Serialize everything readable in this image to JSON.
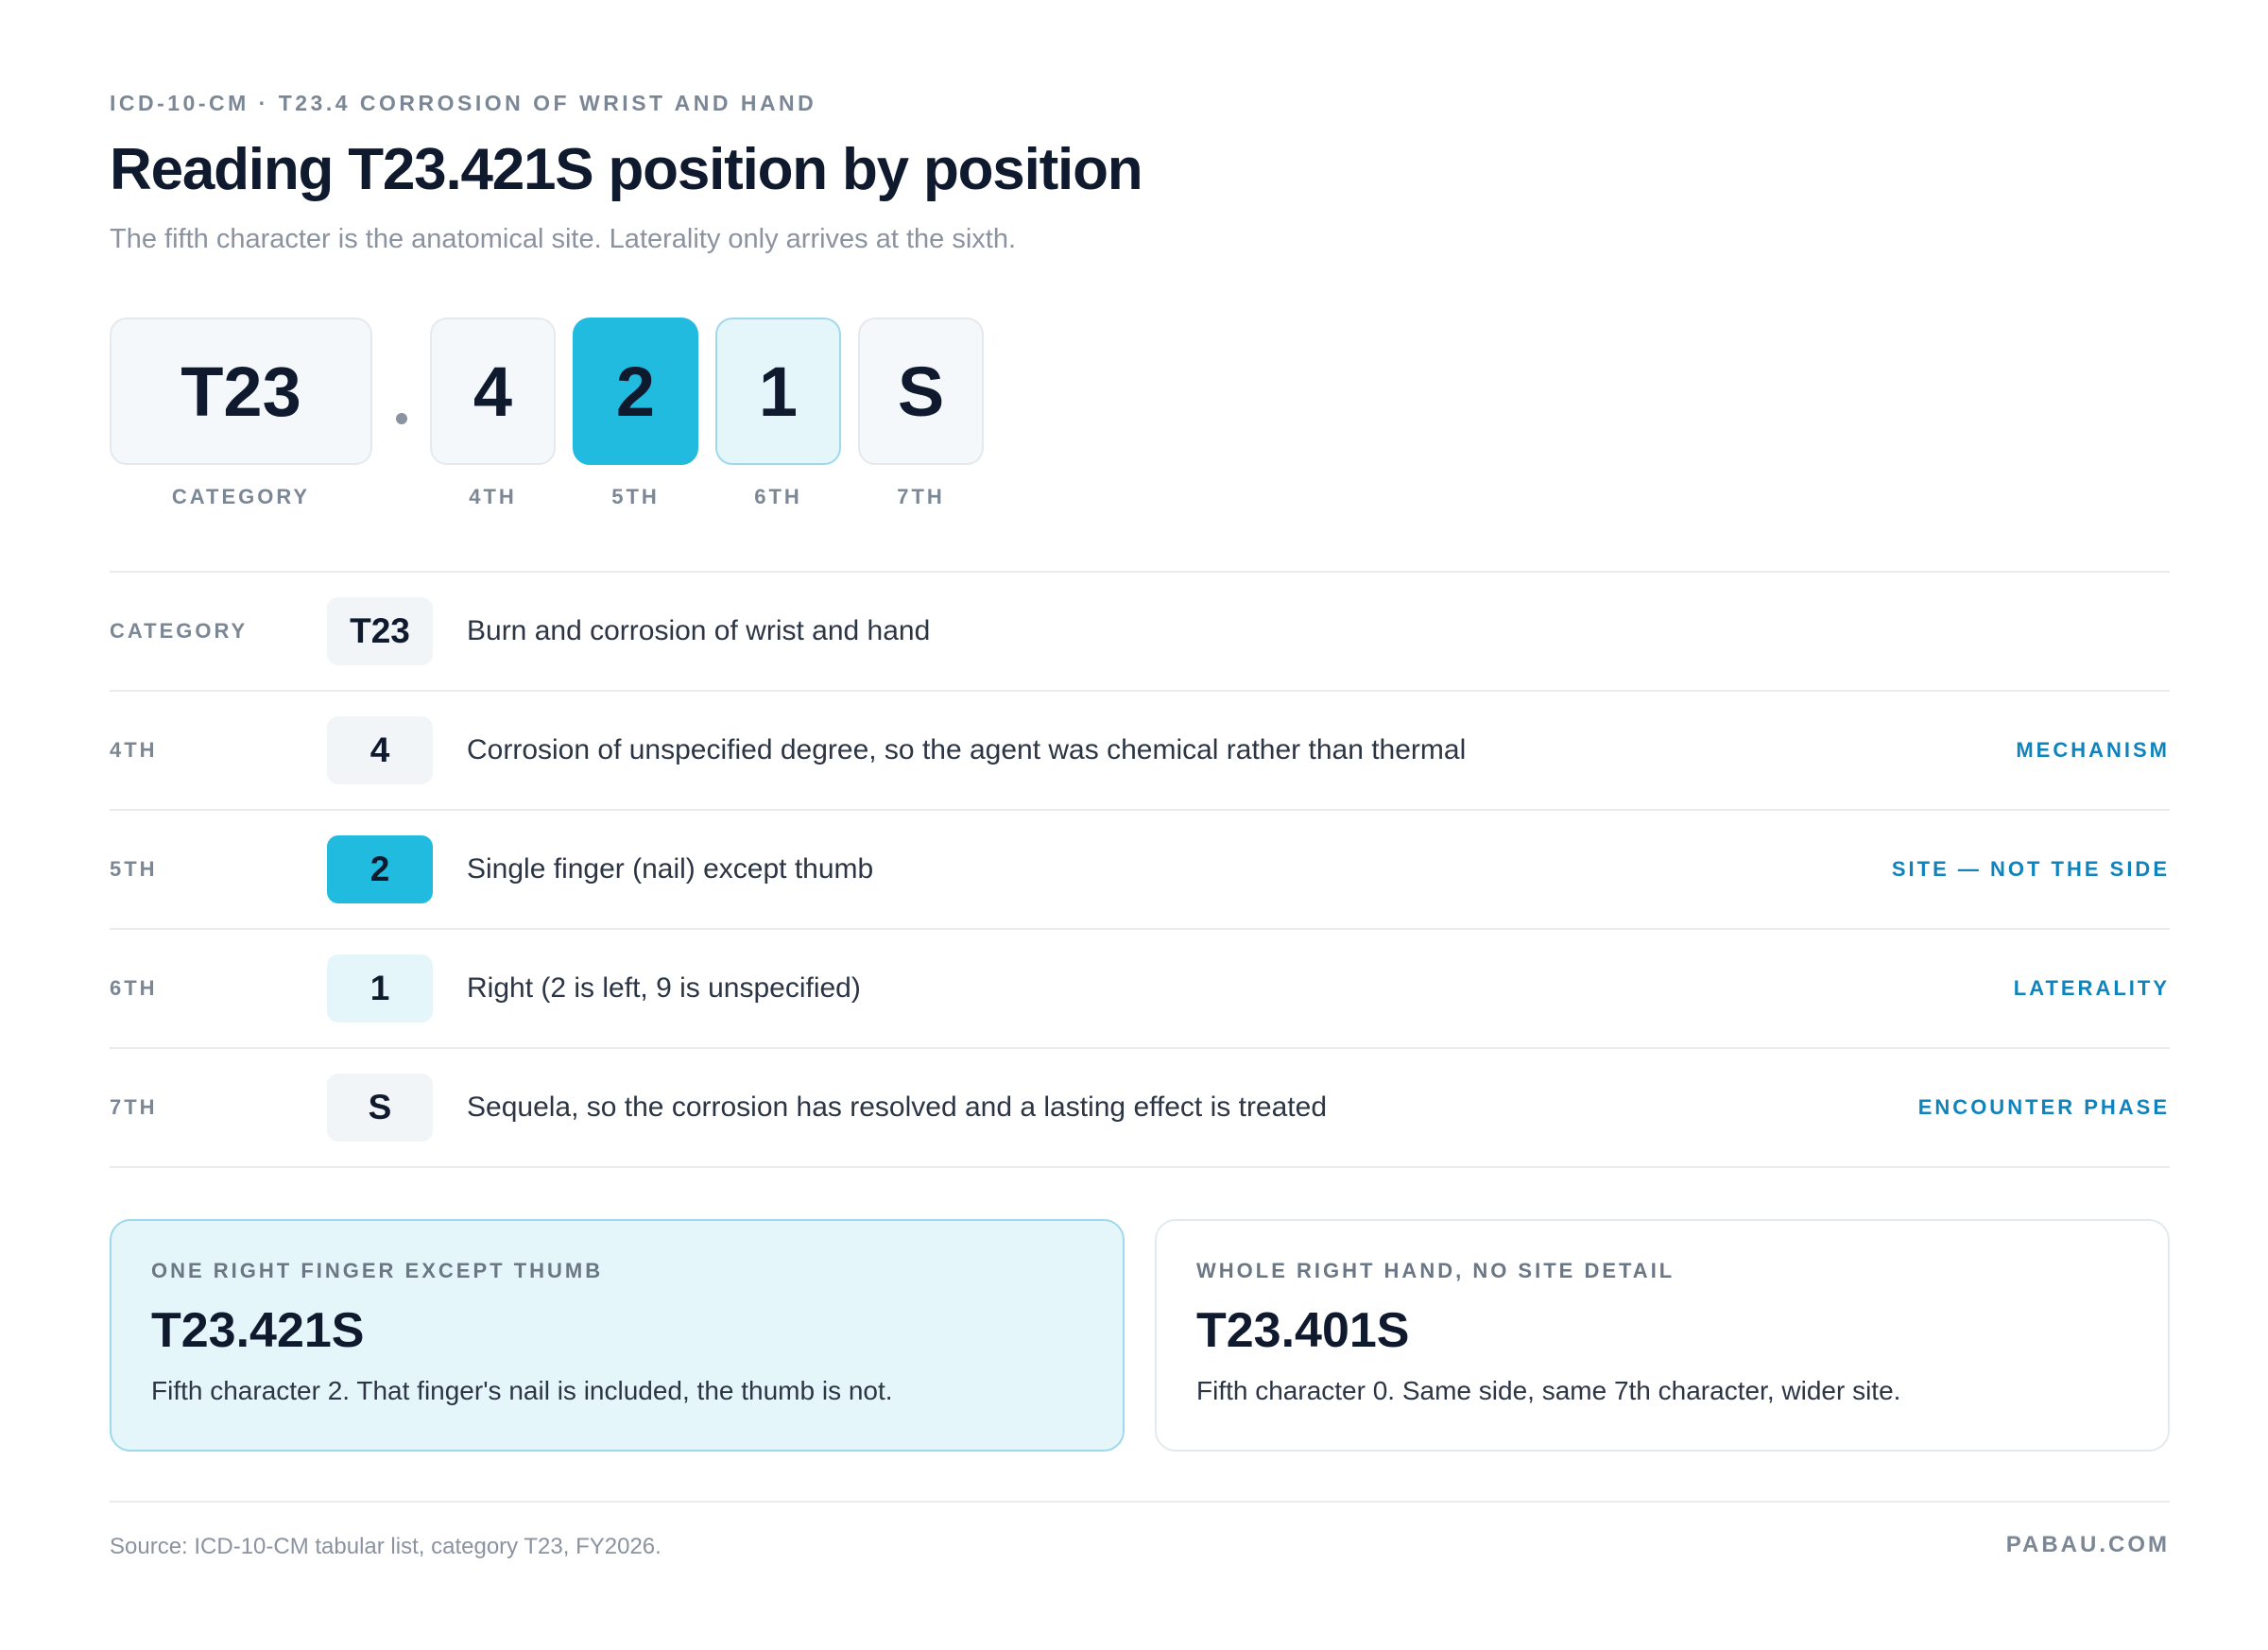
{
  "header": {
    "eyebrow": "ICD-10-CM · T23.4 CORROSION OF WRIST AND HAND",
    "title": "Reading T23.421S position by position",
    "subtitle": "The fifth character is the anatomical site. Laterality only arrives at the sixth."
  },
  "code_tiles": [
    {
      "value": "T23",
      "label": "CATEGORY",
      "style": "default"
    },
    {
      "value": "4",
      "label": "4TH",
      "style": "default"
    },
    {
      "value": "2",
      "label": "5TH",
      "style": "site"
    },
    {
      "value": "1",
      "label": "6TH",
      "style": "laterality"
    },
    {
      "value": "S",
      "label": "7TH",
      "style": "default"
    }
  ],
  "rows": [
    {
      "label": "CATEGORY",
      "chip": "T23",
      "desc": "Burn and corrosion of wrist and hand",
      "tag": ""
    },
    {
      "label": "4TH",
      "chip": "4",
      "desc": "Corrosion of unspecified degree, so the agent was chemical rather than thermal",
      "tag": "MECHANISM"
    },
    {
      "label": "5TH",
      "chip": "2",
      "desc": "Single finger (nail) except thumb",
      "tag": "SITE — NOT THE SIDE"
    },
    {
      "label": "6TH",
      "chip": "1",
      "desc": "Right (2 is left, 9 is unspecified)",
      "tag": "LATERALITY"
    },
    {
      "label": "7TH",
      "chip": "S",
      "desc": "Sequela, so the corrosion has resolved and a lasting effect is treated",
      "tag": "ENCOUNTER PHASE"
    }
  ],
  "cards": [
    {
      "kicker": "ONE RIGHT FINGER EXCEPT THUMB",
      "code": "T23.421S",
      "note": "Fifth character 2. That finger's nail is included, the thumb is not."
    },
    {
      "kicker": "WHOLE RIGHT HAND, NO SITE DETAIL",
      "code": "T23.401S",
      "note": "Fifth character 0. Same side, same 7th character, wider site."
    }
  ],
  "footer": {
    "source": "Source: ICD-10-CM tabular list, category T23, FY2026.",
    "brand": "PABAU.COM"
  },
  "colors": {
    "site_accent": "#22bbe0",
    "laterality_tint": "#e5f6fb",
    "tag_blue": "#1083bd",
    "ink": "#0f1a2e"
  }
}
